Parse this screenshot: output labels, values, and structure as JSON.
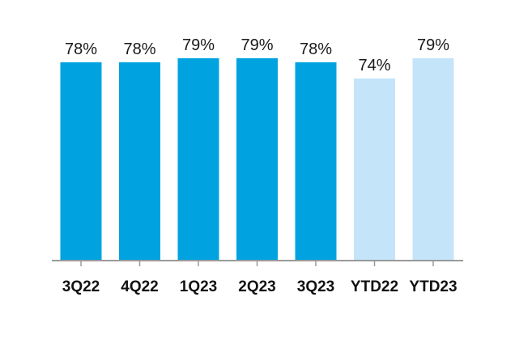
{
  "chart_data": {
    "type": "bar",
    "categories": [
      "3Q22",
      "4Q22",
      "1Q23",
      "2Q23",
      "3Q23",
      "YTD22",
      "YTD23"
    ],
    "values": [
      78,
      78,
      79,
      79,
      78,
      74,
      79
    ],
    "data_labels": [
      "78%",
      "78%",
      "79%",
      "79%",
      "78%",
      "74%",
      "79%"
    ],
    "unit": "%",
    "title": "",
    "xlabel": "",
    "ylabel": "",
    "grid": false,
    "legend": "none",
    "colors": {
      "quarter": "#00a3e0",
      "ytd": "#c4e4fa",
      "axis": "#9a9a9a"
    },
    "bar_style": [
      "quarter",
      "quarter",
      "quarter",
      "quarter",
      "quarter",
      "ytd",
      "ytd"
    ]
  }
}
